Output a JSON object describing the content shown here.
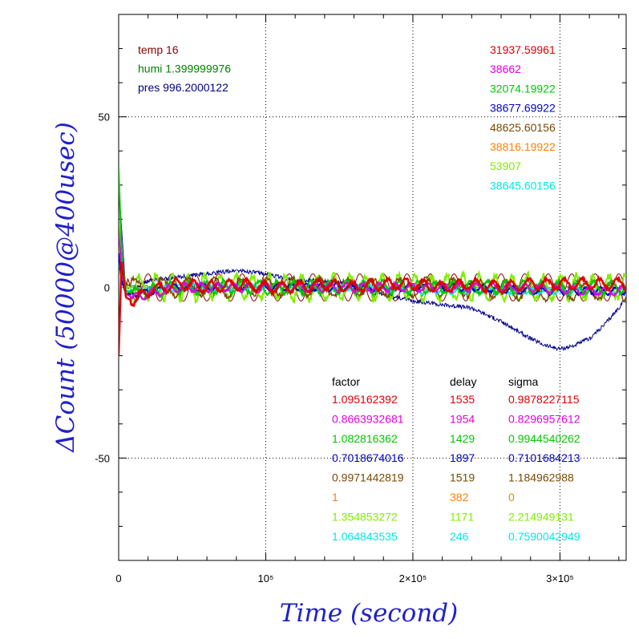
{
  "chart_data": {
    "type": "line",
    "xlabel": "Time (second)",
    "ylabel": "ΔCount (50000@400usec)",
    "xlim": [
      0,
      345000
    ],
    "ylim": [
      -80,
      80
    ],
    "grid": true,
    "x_ticks": [
      {
        "value": 0,
        "label": "0"
      },
      {
        "value": 100000,
        "label": "10⁵"
      },
      {
        "value": 200000,
        "label": "2×10⁵"
      },
      {
        "value": 300000,
        "label": "3×10⁵"
      }
    ],
    "y_ticks": [
      {
        "value": 50,
        "label": "50"
      },
      {
        "value": 0,
        "label": "0"
      },
      {
        "value": -50,
        "label": "-50"
      }
    ],
    "env_info": [
      {
        "label": "temp",
        "value": "16",
        "color": "#8b0000"
      },
      {
        "label": "humi",
        "value": "1.399999976",
        "color": "#008000"
      },
      {
        "label": "pres",
        "value": "996.2000122",
        "color": "#00008b"
      }
    ],
    "table_headers": {
      "factor": "factor",
      "delay": "delay",
      "sigma": "sigma"
    },
    "series": [
      {
        "name": "31937.59961",
        "color": "#e00000",
        "factor": "1.095162392",
        "delay": "1535",
        "sigma": "0.9878227115",
        "x": [
          0,
          2000,
          5000,
          10000,
          20000,
          30000,
          40000,
          60000,
          80000,
          100000,
          120000,
          140000,
          160000,
          180000,
          200000,
          220000,
          240000,
          260000,
          280000,
          300000,
          320000,
          345000
        ],
        "y": [
          -20,
          8,
          -3,
          -4,
          -1,
          0,
          1,
          0,
          1,
          0,
          0,
          1,
          0,
          1,
          1,
          0,
          1,
          0,
          1,
          1,
          1,
          1
        ],
        "amp": 1.5,
        "period": 12000,
        "width": 2.5
      },
      {
        "name": "38662",
        "color": "#e000e0",
        "factor": "0.8663932681",
        "delay": "1954",
        "sigma": "0.8296957612",
        "x": [
          0,
          2000,
          5000,
          10000,
          40000,
          80000,
          120000,
          160000,
          200000,
          240000,
          280000,
          320000,
          345000
        ],
        "y": [
          15,
          5,
          -2,
          -3,
          0,
          0,
          0,
          0,
          0,
          0,
          0,
          -1,
          -1
        ],
        "amp": 1.2,
        "period": 11000,
        "width": 2
      },
      {
        "name": "32074.19922",
        "color": "#00c800",
        "factor": "1.082816362",
        "delay": "1429",
        "sigma": "0.9944540262",
        "x": [
          0,
          2000,
          5000,
          10000,
          40000,
          80000,
          120000,
          160000,
          200000,
          240000,
          280000,
          320000,
          345000
        ],
        "y": [
          35,
          10,
          -1,
          -2,
          0,
          0,
          0,
          0,
          0,
          0,
          0,
          0,
          0
        ],
        "amp": 1.8,
        "period": 12000,
        "width": 2
      },
      {
        "name": "38677.69922",
        "color": "#0000c8",
        "factor": "0.7018674016",
        "delay": "1897",
        "sigma": "0.7101684213",
        "x": [
          0,
          2000,
          5000,
          10000,
          40000,
          80000,
          120000,
          160000,
          200000,
          240000,
          280000,
          320000,
          345000
        ],
        "y": [
          10,
          2,
          -2,
          -2,
          0,
          0,
          0,
          0,
          0,
          0,
          -1,
          -1,
          -1
        ],
        "amp": 1,
        "period": 10000,
        "width": 2
      },
      {
        "name": "48625.60156",
        "color": "#7a4a00",
        "factor": "0.9971442819",
        "delay": "1519",
        "sigma": "1.184962988",
        "x": [
          0,
          2000,
          5000,
          10000,
          40000,
          80000,
          120000,
          160000,
          200000,
          240000,
          280000,
          320000,
          345000
        ],
        "y": [
          18,
          4,
          1,
          0,
          0,
          0,
          0,
          0,
          0,
          0,
          -1,
          -1,
          -1
        ],
        "amp": 2.5,
        "period": 18000,
        "width": 1.5
      },
      {
        "name": "38816.19922",
        "color": "#ff8000",
        "factor": "1",
        "delay": "382",
        "sigma": "0",
        "x": [
          0,
          345000
        ],
        "y": [
          0,
          0
        ],
        "amp": 0,
        "period": 10000,
        "width": 1
      },
      {
        "name": "53907",
        "color": "#80ee00",
        "factor": "1.354853272",
        "delay": "1171",
        "sigma": "2.214949131",
        "x": [
          0,
          2000,
          5000,
          10000,
          40000,
          80000,
          120000,
          160000,
          200000,
          240000,
          280000,
          320000,
          345000
        ],
        "y": [
          12,
          4,
          0,
          0,
          0,
          0,
          0,
          0,
          0,
          0,
          0,
          0,
          0
        ],
        "amp": 3.5,
        "period": 11000,
        "width": 2
      },
      {
        "name": "38645.60156",
        "color": "#00e8e8",
        "factor": "1.064843535",
        "delay": "246",
        "sigma": "0.7590042949",
        "x": [
          0,
          2000,
          5000,
          10000,
          40000,
          80000,
          120000,
          160000,
          200000,
          240000,
          280000,
          320000,
          345000
        ],
        "y": [
          8,
          2,
          -1,
          -1,
          0,
          0,
          0,
          0,
          -1,
          -1,
          -1,
          -1,
          -1
        ],
        "amp": 0.8,
        "period": 10000,
        "width": 2
      }
    ],
    "pressure_trend": {
      "color": "#00008b",
      "x": [
        0,
        5000,
        20000,
        40000,
        60000,
        80000,
        100000,
        120000,
        140000,
        160000,
        180000,
        200000,
        220000,
        240000,
        260000,
        280000,
        290000,
        300000,
        310000,
        320000,
        330000,
        340000,
        345000
      ],
      "y": [
        30,
        -2,
        2,
        3,
        4,
        5,
        4,
        2,
        2,
        1,
        -2,
        -4,
        -5,
        -6,
        -10,
        -15,
        -17,
        -18,
        -17,
        -15,
        -11,
        -6,
        -3
      ]
    },
    "thin_trends": [
      {
        "color": "#8b0000",
        "amp": 4,
        "period": 16000
      },
      {
        "color": "#008000",
        "amp": 0.5,
        "period": 9000
      }
    ]
  }
}
